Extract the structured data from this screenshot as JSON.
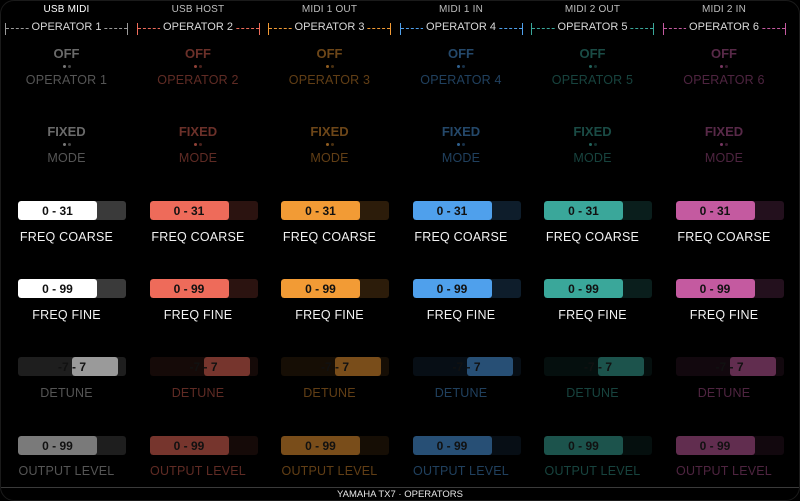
{
  "footer": "YAMAHA TX7 · OPERATORS",
  "columns": [
    {
      "tab": "USB MIDI",
      "operator": "OPERATOR 1",
      "toggle1": "OFF",
      "toggle1_label": "OPERATOR 1",
      "toggle2": "FIXED",
      "toggle2_label": "MODE",
      "freq_coarse": "0 - 31",
      "freq_coarse_label": "FREQ COARSE",
      "freq_fine": "0 - 99",
      "freq_fine_label": "FREQ FINE",
      "detune": "-7 - 7",
      "detune_label": "DETUNE",
      "output_level": "0 - 99",
      "output_level_label": "OUTPUT LEVEL",
      "color": "#ffffff",
      "accent": "#9a9a9a"
    },
    {
      "tab": "USB HOST",
      "operator": "OPERATOR 2",
      "toggle1": "OFF",
      "toggle1_label": "OPERATOR 2",
      "toggle2": "FIXED",
      "toggle2_label": "MODE",
      "freq_coarse": "0 - 31",
      "freq_coarse_label": "FREQ COARSE",
      "freq_fine": "0 - 99",
      "freq_fine_label": "FREQ FINE",
      "detune": "-7 - 7",
      "detune_label": "DETUNE",
      "output_level": "0 - 99",
      "output_level_label": "OUTPUT LEVEL",
      "color": "#ee6b5a",
      "accent": "#ee6b5a"
    },
    {
      "tab": "MIDI 1 OUT",
      "operator": "OPERATOR 3",
      "toggle1": "OFF",
      "toggle1_label": "OPERATOR 3",
      "toggle2": "FIXED",
      "toggle2_label": "MODE",
      "freq_coarse": "0 - 31",
      "freq_coarse_label": "FREQ COARSE",
      "freq_fine": "0 - 99",
      "freq_fine_label": "FREQ FINE",
      "detune": "-7 - 7",
      "detune_label": "DETUNE",
      "output_level": "0 - 99",
      "output_level_label": "OUTPUT LEVEL",
      "color": "#f29b35",
      "accent": "#f29b35"
    },
    {
      "tab": "MIDI 1 IN",
      "operator": "OPERATOR 4",
      "toggle1": "OFF",
      "toggle1_label": "OPERATOR 4",
      "toggle2": "FIXED",
      "toggle2_label": "MODE",
      "freq_coarse": "0 - 31",
      "freq_coarse_label": "FREQ COARSE",
      "freq_fine": "0 - 99",
      "freq_fine_label": "FREQ FINE",
      "detune": "-7 - 7",
      "detune_label": "DETUNE",
      "output_level": "0 - 99",
      "output_level_label": "OUTPUT LEVEL",
      "color": "#4fa0ec",
      "accent": "#4fa0ec"
    },
    {
      "tab": "MIDI 2 OUT",
      "operator": "OPERATOR 5",
      "toggle1": "OFF",
      "toggle1_label": "OPERATOR 5",
      "toggle2": "FIXED",
      "toggle2_label": "MODE",
      "freq_coarse": "0 - 31",
      "freq_coarse_label": "FREQ COARSE",
      "freq_fine": "0 - 99",
      "freq_fine_label": "FREQ FINE",
      "detune": "-7 - 7",
      "detune_label": "DETUNE",
      "output_level": "0 - 99",
      "output_level_label": "OUTPUT LEVEL",
      "color": "#3aa79a",
      "accent": "#3aa79a"
    },
    {
      "tab": "MIDI 2 IN",
      "operator": "OPERATOR 6",
      "toggle1": "OFF",
      "toggle1_label": "OPERATOR 6",
      "toggle2": "FIXED",
      "toggle2_label": "MODE",
      "freq_coarse": "0 - 31",
      "freq_coarse_label": "FREQ COARSE",
      "freq_fine": "0 - 99",
      "freq_fine_label": "FREQ FINE",
      "detune": "-7 - 7",
      "detune_label": "DETUNE",
      "output_level": "0 - 99",
      "output_level_label": "OUTPUT LEVEL",
      "color": "#c45aa0",
      "accent": "#c45aa0"
    }
  ]
}
